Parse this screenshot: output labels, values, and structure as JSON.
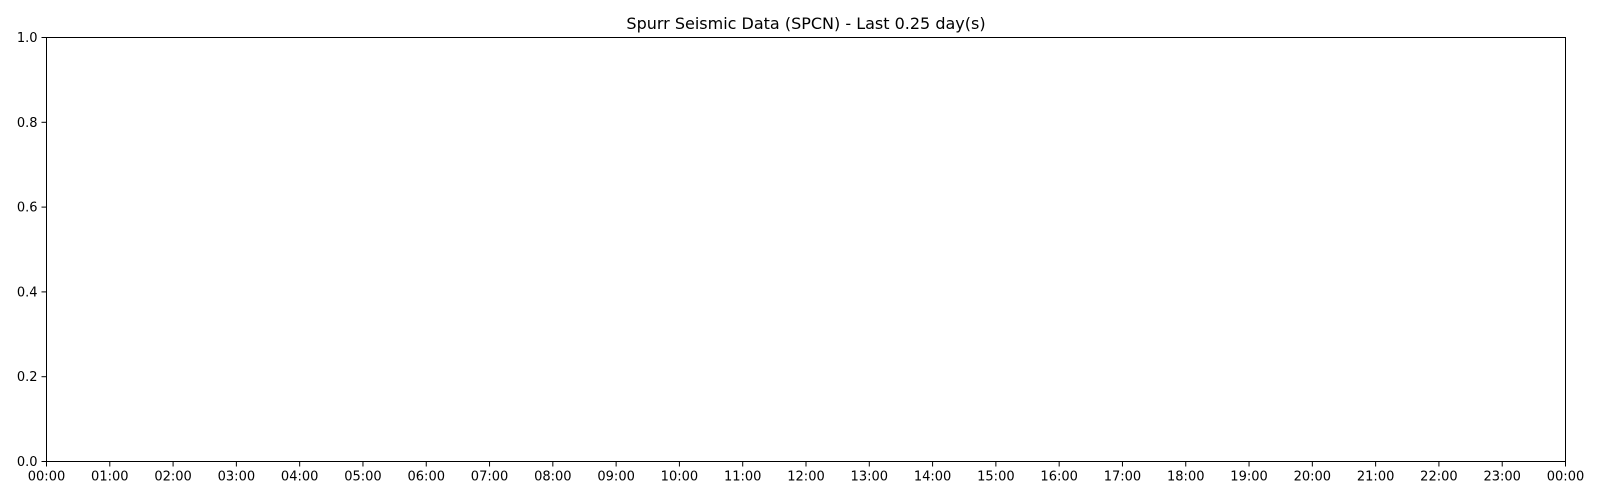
{
  "chart_data": {
    "type": "line",
    "title": "Spurr Seismic Data (SPCN) - Last 0.25 day(s)",
    "xlabel": "",
    "ylabel": "",
    "x_tick_labels": [
      "00:00",
      "01:00",
      "02:00",
      "03:00",
      "04:00",
      "05:00",
      "06:00",
      "07:00",
      "08:00",
      "09:00",
      "10:00",
      "11:00",
      "12:00",
      "13:00",
      "14:00",
      "15:00",
      "16:00",
      "17:00",
      "18:00",
      "19:00",
      "20:00",
      "21:00",
      "22:00",
      "23:00",
      "00:00"
    ],
    "y_ticks": [
      0.0,
      0.2,
      0.4,
      0.6,
      0.8,
      1.0
    ],
    "y_tick_labels": [
      "0.0",
      "0.2",
      "0.4",
      "0.6",
      "0.8",
      "1.0"
    ],
    "ylim": [
      0.0,
      1.0
    ],
    "grid": false,
    "series": []
  }
}
